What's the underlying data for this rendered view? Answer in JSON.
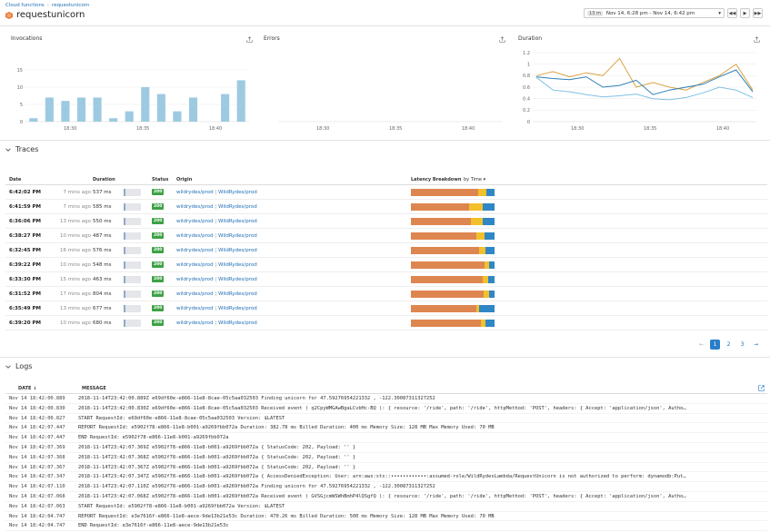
{
  "breadcrumb": {
    "root": "Cloud functions",
    "separator": "›",
    "current": "requestunicorn"
  },
  "title": "requestunicorn",
  "time": {
    "badge": "13 m",
    "range": "Nov 14, 6:28 pm - Nov 14, 6:42 pm"
  },
  "charts": {
    "invocations": {
      "title": "Invocations"
    },
    "errors": {
      "title": "Errors"
    },
    "duration": {
      "title": "Duration"
    }
  },
  "chart_data": [
    {
      "type": "bar",
      "title": "Invocations",
      "y_ticks": [
        "0",
        "5",
        "10",
        "15"
      ],
      "ylim": [
        0,
        20
      ],
      "x_ticks": [
        "18:30",
        "18:35",
        "18:40"
      ],
      "values": [
        1,
        7,
        6,
        7,
        7,
        1,
        3,
        10,
        8,
        3,
        7,
        0,
        8,
        12
      ],
      "color": "#9ecae1",
      "grid": true
    },
    {
      "type": "bar",
      "title": "Errors",
      "x_ticks": [
        "18:30",
        "18:35",
        "18:40"
      ],
      "values": [],
      "grid": false
    },
    {
      "type": "line",
      "title": "Duration",
      "y_ticks": [
        "0",
        "0.2",
        "0.4",
        "0.6",
        "0.8",
        "1",
        "1.2"
      ],
      "ylim": [
        0,
        1.2
      ],
      "x_ticks": [
        "18:30",
        "18:35",
        "18:40"
      ],
      "series": [
        {
          "color": "#d9a441",
          "values": [
            0.8,
            0.87,
            0.78,
            0.85,
            0.8,
            1.1,
            0.6,
            0.68,
            0.6,
            0.55,
            0.68,
            0.8,
            1.0,
            0.55
          ]
        },
        {
          "color": "#2c7fb8",
          "values": [
            0.78,
            0.75,
            0.73,
            0.78,
            0.6,
            0.63,
            0.72,
            0.47,
            0.55,
            0.6,
            0.65,
            0.78,
            0.9,
            0.52
          ]
        },
        {
          "color": "#7fc1e3",
          "values": [
            0.77,
            0.55,
            0.52,
            0.47,
            0.43,
            0.45,
            0.48,
            0.4,
            0.38,
            0.42,
            0.5,
            0.6,
            0.55,
            0.42
          ]
        }
      ]
    }
  ],
  "traces": {
    "section_title": "Traces",
    "headers": {
      "date": "Date",
      "duration": "Duration",
      "status": "Status",
      "origin": "Origin",
      "latency": "Latency Breakdown",
      "sort": "by Time"
    },
    "rows": [
      {
        "date": "6:42:02 PM",
        "ago": "7 mins ago",
        "duration": "537 ms",
        "status": "200",
        "origin1": "wildrydes/prod",
        "origin2": "WildRydes/prod",
        "lat": [
          0.8,
          0.1,
          0.1
        ]
      },
      {
        "date": "6:41:59 PM",
        "ago": "7 mins ago",
        "duration": "585 ms",
        "status": "200",
        "origin1": "wildrydes/prod",
        "origin2": "WildRydes/prod",
        "lat": [
          0.7,
          0.16,
          0.14
        ]
      },
      {
        "date": "6:36:06 PM",
        "ago": "13 mins ago",
        "duration": "550 ms",
        "status": "200",
        "origin1": "wildrydes/prod",
        "origin2": "WildRydes/prod",
        "lat": [
          0.72,
          0.14,
          0.14
        ]
      },
      {
        "date": "6:38:27 PM",
        "ago": "10 mins ago",
        "duration": "487 ms",
        "status": "200",
        "origin1": "wildrydes/prod",
        "origin2": "WildRydes/prod",
        "lat": [
          0.78,
          0.1,
          0.12
        ]
      },
      {
        "date": "6:32:45 PM",
        "ago": "16 mins ago",
        "duration": "576 ms",
        "status": "200",
        "origin1": "wildrydes/prod",
        "origin2": "WildRydes/prod",
        "lat": [
          0.82,
          0.07,
          0.11
        ]
      },
      {
        "date": "6:39:22 PM",
        "ago": "10 mins ago",
        "duration": "548 ms",
        "status": "200",
        "origin1": "wildrydes/prod",
        "origin2": "WildRydes/prod",
        "lat": [
          0.88,
          0.05,
          0.07
        ]
      },
      {
        "date": "6:33:30 PM",
        "ago": "15 mins ago",
        "duration": "463 ms",
        "status": "200",
        "origin1": "wildrydes/prod",
        "origin2": "WildRydes/prod",
        "lat": [
          0.86,
          0.06,
          0.08
        ]
      },
      {
        "date": "6:31:52 PM",
        "ago": "17 mins ago",
        "duration": "804 ms",
        "status": "200",
        "origin1": "wildrydes/prod",
        "origin2": "WildRydes/prod",
        "lat": [
          0.87,
          0.07,
          0.06
        ]
      },
      {
        "date": "6:35:49 PM",
        "ago": "13 mins ago",
        "duration": "677 ms",
        "status": "200",
        "origin1": "wildrydes/prod",
        "origin2": "WildRydes/prod",
        "lat": [
          0.78,
          0.04,
          0.18
        ]
      },
      {
        "date": "6:39:20 PM",
        "ago": "10 mins ago",
        "duration": "680 ms",
        "status": "200",
        "origin1": "wildrydes/prod",
        "origin2": "WildRydes/prod",
        "lat": [
          0.84,
          0.05,
          0.11
        ]
      }
    ],
    "latency_colors": [
      "#de8650",
      "#f2c02d",
      "#2f87c5"
    ]
  },
  "pagination": {
    "prev": "←",
    "pages": [
      "1",
      "2",
      "3"
    ],
    "next": "→"
  },
  "logs": {
    "section_title": "Logs",
    "headers": {
      "date": "DATE ↓",
      "message": "MESSAGE"
    },
    "rows": [
      {
        "date": "Nov 14 18:42:00.889",
        "message": "2018-11-14T23:42:00.889Z e69df60e-e866-11e8-8cae-05c5aa032503 Finding unicorn for 47.59276954221332 , -122.30087311327252"
      },
      {
        "date": "Nov 14 18:42:00.830",
        "message": "2018-11-14T23:42:00.830Z e69df60e-e866-11e8-8cae-05c5aa032503 Received event ( q2CpyWMGAwBgaLCvbHc-BQ ): { resource: '/ride', path: '/ride', httpMethod: 'POST', headers: { Accept: 'application/json', Autho…"
      },
      {
        "date": "Nov 14 18:42:00.827",
        "message": "START RequestId: e69df60e-e866-11e8-8cae-05c5aa032503 Version: $LATEST"
      },
      {
        "date": "Nov 14 18:42:07.447",
        "message": "REPORT RequestId: e5902f78-e866-11e8-b001-a9269fbb072a Duration: 382.78 ms Billed Duration: 400 ms Memory Size: 128 MB Max Memory Used: 70 MB"
      },
      {
        "date": "Nov 14 18:42:07.447",
        "message": "END RequestId: e5902f78-e866-11e8-b001-a9269fbb072a"
      },
      {
        "date": "Nov 14 18:42:07.369",
        "message": "2018-11-14T23:42:07.369Z e5902f78-e866-11e8-b001-a9269fbb072a { StatusCode: 202, Payload: '' }"
      },
      {
        "date": "Nov 14 18:42:07.368",
        "message": "2018-11-14T23:42:07.368Z e5902f78-e866-11e8-b001-a9269fbb072a { StatusCode: 202, Payload: '' }"
      },
      {
        "date": "Nov 14 18:42:07.367",
        "message": "2018-11-14T23:42:07.367Z e5902f78-e866-11e8-b001-a9269fbb072a { StatusCode: 202, Payload: '' }"
      },
      {
        "date": "Nov 14 18:42:07.347",
        "message": "2018-11-14T23:42:07.347Z e5902f78-e866-11e8-b001-a9269fbb072a { AccessDeniedException: User: arn:aws:sts::••••••••••••:assumed-role/WildRydesLambda/RequestUnicorn is not authorized to perform: dynamodb:Put…"
      },
      {
        "date": "Nov 14 18:42:07.110",
        "message": "2018-11-14T23:42:07.110Z e5902f78-e866-11e8-b001-a9269fbb072a Finding unicorn for 47.59276954221332 , -122.30087311327252"
      },
      {
        "date": "Nov 14 18:42:07.068",
        "message": "2018-11-14T23:42:07.068Z e5902f78-e866-11e8-b001-a9269fbb072a Received event ( GVSGjcmWSWhBmhP4lQSgfQ ): { resource: '/ride', path: '/ride', httpMethod: 'POST', headers: { Accept: 'application/json', Autho…"
      },
      {
        "date": "Nov 14 18:42:07.063",
        "message": "START RequestId: e5902f78-e866-11e8-b001-a9269fbb072a Version: $LATEST"
      },
      {
        "date": "Nov 14 18:42:04.747",
        "message": "REPORT RequestId: e3e7616f-e866-11e8-aece-9de13b21e53c Duration: 470.26 ms Billed Duration: 500 ms Memory Size: 128 MB Max Memory Used: 70 MB"
      },
      {
        "date": "Nov 14 18:42:04.747",
        "message": "END RequestId: e3e7616f-e866-11e8-aece-9de13b21e53c"
      }
    ]
  },
  "colors": {
    "accent": "#2a7ec8",
    "link": "#1f6fb5",
    "status_ok": "#3ea145"
  }
}
